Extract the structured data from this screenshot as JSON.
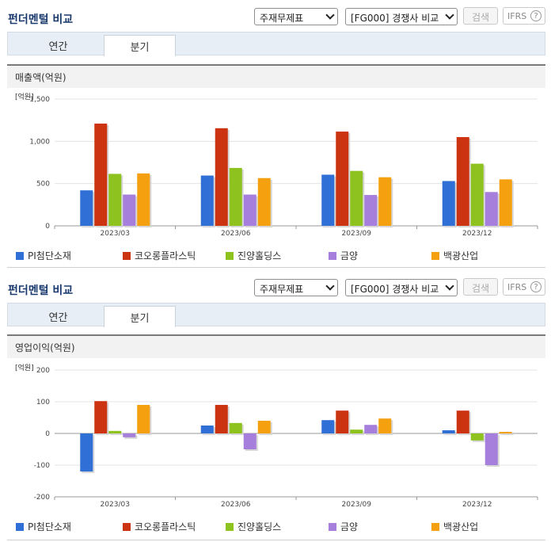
{
  "sections": [
    {
      "title": "펀더멘털 비교",
      "statement_select": "주재무제표",
      "peer_select": "[FG000] 경쟁사 비교",
      "search_label": "검색",
      "ifrs_label": "IFRS",
      "help_label": "?",
      "tabs": [
        {
          "label": "연간"
        },
        {
          "label": "분기"
        }
      ],
      "active_tab": 1,
      "subtitle": "매출액(억원)"
    },
    {
      "title": "펀더멘털 비교",
      "statement_select": "주재무제표",
      "peer_select": "[FG000] 경쟁사 비교",
      "search_label": "검색",
      "ifrs_label": "IFRS",
      "help_label": "?",
      "tabs": [
        {
          "label": "연간"
        },
        {
          "label": "분기"
        }
      ],
      "active_tab": 1,
      "subtitle": "영업이익(억원)"
    }
  ],
  "chart_data": [
    {
      "type": "bar",
      "title": "매출액(억원)",
      "unit_label": "[억원]",
      "categories": [
        "2023/03",
        "2023/06",
        "2023/09",
        "2023/12"
      ],
      "ylim": [
        0,
        1500
      ],
      "yticks": [
        0,
        500,
        1000,
        1500
      ],
      "ytick_labels": [
        "0",
        "500",
        "1,000",
        "1,500"
      ],
      "legend_position": "bottom",
      "grid": true,
      "series": [
        {
          "name": "PI첨단소재",
          "color": "#2f6fd6",
          "values": [
            420,
            595,
            605,
            530
          ]
        },
        {
          "name": "코오롱플라스틱",
          "color": "#cc3311",
          "values": [
            1210,
            1155,
            1115,
            1050
          ]
        },
        {
          "name": "진양홀딩스",
          "color": "#8ec21f",
          "values": [
            615,
            685,
            650,
            735
          ]
        },
        {
          "name": "금양",
          "color": "#a57fdb",
          "values": [
            370,
            370,
            365,
            400
          ]
        },
        {
          "name": "백광산업",
          "color": "#f5a00f",
          "values": [
            620,
            565,
            575,
            550
          ]
        }
      ]
    },
    {
      "type": "bar",
      "title": "영업이익(억원)",
      "unit_label": "[억원]",
      "categories": [
        "2023/03",
        "2023/06",
        "2023/09",
        "2023/12"
      ],
      "ylim": [
        -200,
        200
      ],
      "yticks": [
        -200,
        -100,
        0,
        100,
        200
      ],
      "ytick_labels": [
        "-200",
        "-100",
        "0",
        "100",
        "200"
      ],
      "legend_position": "bottom",
      "grid": true,
      "series": [
        {
          "name": "PI첨단소재",
          "color": "#2f6fd6",
          "values": [
            -120,
            25,
            42,
            10
          ]
        },
        {
          "name": "코오롱플라스틱",
          "color": "#cc3311",
          "values": [
            102,
            90,
            72,
            72
          ]
        },
        {
          "name": "진양홀딩스",
          "color": "#8ec21f",
          "values": [
            8,
            33,
            12,
            -22
          ]
        },
        {
          "name": "금양",
          "color": "#a57fdb",
          "values": [
            -12,
            -50,
            27,
            -100
          ]
        },
        {
          "name": "백광산업",
          "color": "#f5a00f",
          "values": [
            90,
            40,
            47,
            5
          ]
        }
      ]
    }
  ]
}
